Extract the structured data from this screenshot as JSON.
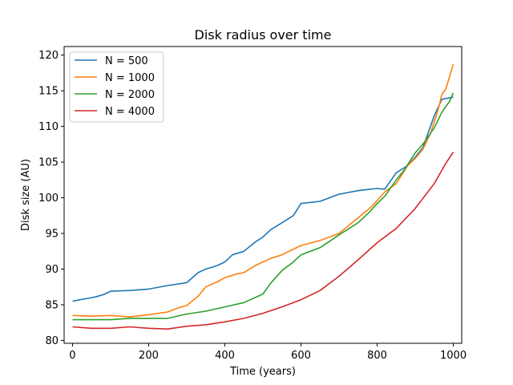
{
  "chart_data": {
    "type": "line",
    "title": "Disk radius over time",
    "xlabel": "Time (years)",
    "ylabel": "Disk size (AU)",
    "xlim": [
      -22,
      1022
    ],
    "ylim": [
      79.6,
      121.2
    ],
    "xticks": [
      0,
      200,
      400,
      600,
      800,
      1000
    ],
    "yticks": [
      80,
      85,
      90,
      95,
      100,
      105,
      110,
      115,
      120
    ],
    "xtick_labels": [
      "0",
      "200",
      "400",
      "600",
      "800",
      "1000"
    ],
    "ytick_labels": [
      "80",
      "85",
      "90",
      "95",
      "100",
      "105",
      "110",
      "115",
      "120"
    ],
    "grid": false,
    "legend_position": "top-left",
    "series": [
      {
        "name": "N = 500",
        "color": "#1f77b4",
        "x": [
          0,
          20,
          40,
          60,
          80,
          100,
          150,
          200,
          250,
          300,
          330,
          350,
          380,
          400,
          420,
          450,
          480,
          500,
          520,
          550,
          580,
          600,
          650,
          700,
          750,
          780,
          800,
          820,
          850,
          880,
          900,
          920,
          950,
          970,
          1000
        ],
        "y": [
          85.5,
          85.7,
          85.9,
          86.1,
          86.4,
          86.9,
          87.0,
          87.2,
          87.7,
          88.1,
          89.5,
          90.0,
          90.5,
          91.0,
          92.0,
          92.5,
          93.8,
          94.5,
          95.5,
          96.5,
          97.5,
          99.2,
          99.5,
          100.5,
          101.0,
          101.2,
          101.3,
          101.2,
          103.5,
          104.5,
          105.7,
          107.0,
          111.5,
          113.8,
          114.1
        ]
      },
      {
        "name": "N = 1000",
        "color": "#ff7f0e",
        "x": [
          0,
          50,
          100,
          150,
          200,
          250,
          280,
          300,
          330,
          350,
          380,
          400,
          430,
          450,
          480,
          500,
          520,
          550,
          580,
          600,
          650,
          700,
          750,
          780,
          800,
          820,
          850,
          880,
          900,
          920,
          940,
          960,
          970,
          980,
          1000
        ],
        "y": [
          83.5,
          83.4,
          83.5,
          83.3,
          83.6,
          84.0,
          84.6,
          84.9,
          86.2,
          87.5,
          88.2,
          88.8,
          89.3,
          89.5,
          90.5,
          91.0,
          91.5,
          92.0,
          92.8,
          93.3,
          94.0,
          95.0,
          97.2,
          98.5,
          99.6,
          100.8,
          102.0,
          104.5,
          105.5,
          106.8,
          109.0,
          112.3,
          114.5,
          115.2,
          118.7
        ]
      },
      {
        "name": "N = 2000",
        "color": "#2ca02c",
        "x": [
          0,
          50,
          100,
          150,
          200,
          250,
          300,
          350,
          400,
          450,
          500,
          520,
          550,
          580,
          600,
          650,
          700,
          750,
          780,
          800,
          820,
          850,
          870,
          900,
          920,
          950,
          970,
          990,
          1000
        ],
        "y": [
          82.9,
          82.9,
          82.9,
          83.1,
          83.1,
          83.1,
          83.7,
          84.1,
          84.7,
          85.3,
          86.5,
          88.0,
          89.8,
          91.0,
          92.0,
          93.0,
          94.8,
          96.5,
          98.0,
          99.2,
          100.2,
          102.5,
          103.8,
          106.3,
          107.5,
          109.8,
          112.0,
          113.5,
          114.7
        ]
      },
      {
        "name": "N = 4000",
        "color": "#d62728",
        "x": [
          0,
          50,
          100,
          150,
          200,
          250,
          300,
          350,
          400,
          450,
          500,
          550,
          600,
          650,
          700,
          750,
          800,
          850,
          900,
          950,
          980,
          1000
        ],
        "y": [
          81.9,
          81.7,
          81.7,
          81.9,
          81.7,
          81.6,
          82.0,
          82.2,
          82.6,
          83.1,
          83.8,
          84.7,
          85.7,
          87.0,
          89.0,
          91.3,
          93.7,
          95.7,
          98.5,
          102.0,
          104.8,
          106.4
        ]
      }
    ]
  }
}
